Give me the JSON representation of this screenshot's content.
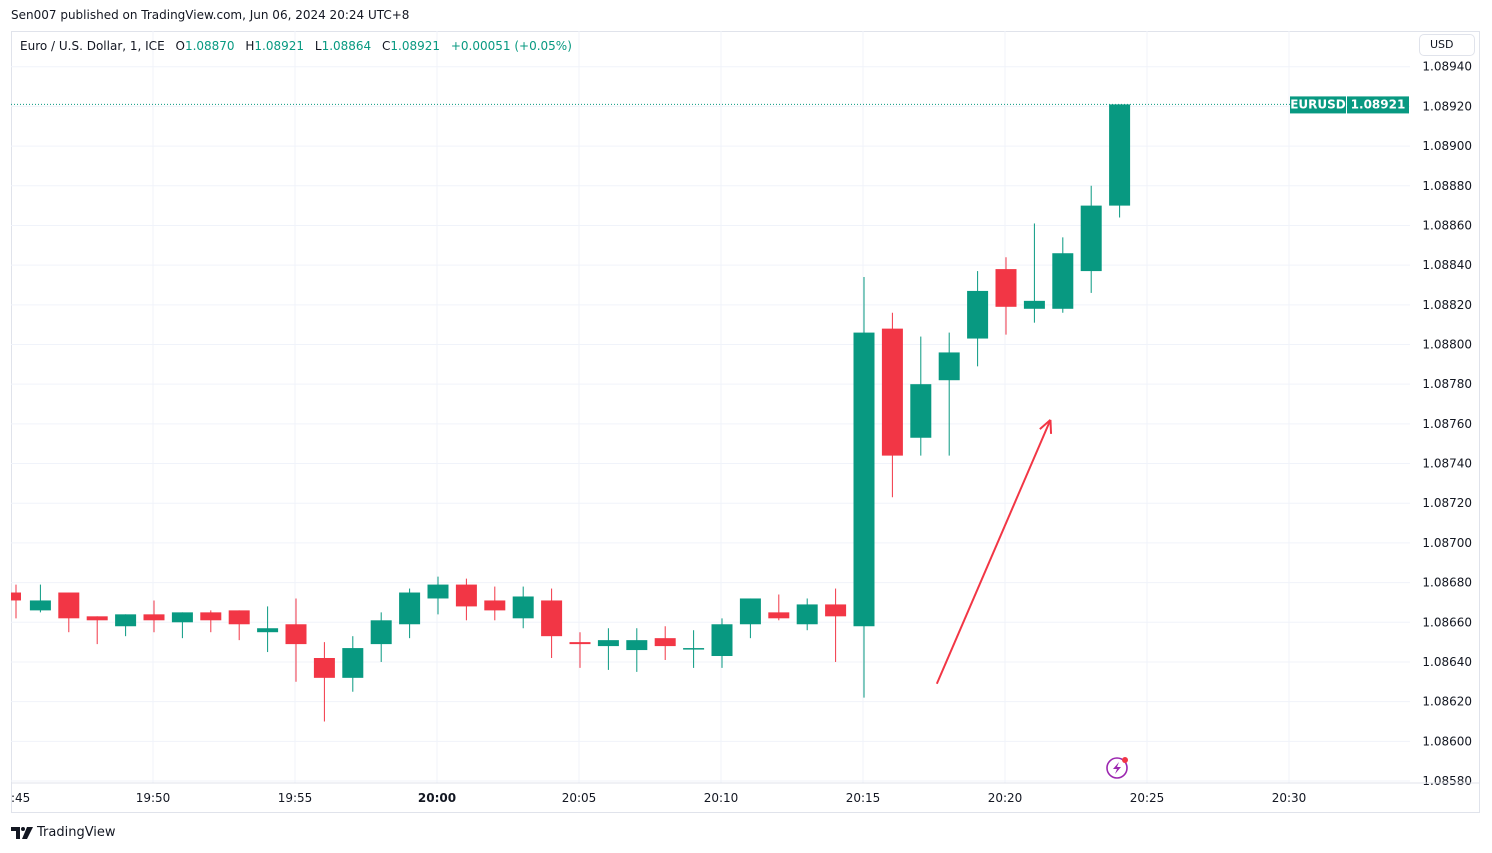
{
  "published": "Sen007 published on TradingView.com, Jun 06, 2024 20:24 UTC+8",
  "legend": {
    "symbol": "Euro / U.S. Dollar, 1, ICE",
    "o_label": "O",
    "o": "1.08870",
    "h_label": "H",
    "h": "1.08921",
    "l_label": "L",
    "l": "1.08864",
    "c_label": "C",
    "c": "1.08921",
    "change": "+0.00051 (+0.05%)"
  },
  "currency_button": "USD",
  "price_tag": {
    "symbol": "EURUSD",
    "price": "1.08921"
  },
  "brand": "TradingView",
  "colors": {
    "up": "#089981",
    "down": "#F23645",
    "grid": "#f0f3fa",
    "arrow": "#F23645",
    "accent": "#9c27b0"
  },
  "chart_data": {
    "type": "candlestick",
    "title": "Euro / U.S. Dollar, 1, ICE",
    "ylim": [
      1.08579,
      1.08958
    ],
    "y_ticks": [
      "1.08940",
      "1.08920",
      "1.08900",
      "1.08880",
      "1.08860",
      "1.08840",
      "1.08820",
      "1.08800",
      "1.08780",
      "1.08760",
      "1.08740",
      "1.08720",
      "1.08700",
      "1.08680",
      "1.08660",
      "1.08640",
      "1.08620",
      "1.08600",
      "1.08580"
    ],
    "x_ticks": [
      ":45",
      "19:50",
      "19:55",
      "20:00",
      "20:05",
      "20:10",
      "20:15",
      "20:20",
      "20:25",
      "20:30"
    ],
    "x_tick_minutes": [
      0,
      5,
      10,
      15,
      20,
      25,
      30,
      35,
      40,
      45
    ],
    "bold_x_tick": "20:00",
    "last_price": 1.08921,
    "candles": [
      {
        "t": "19:45",
        "o": 1.08675,
        "h": 1.08679,
        "l": 1.08662,
        "c": 1.08671
      },
      {
        "t": "19:46",
        "o": 1.08666,
        "h": 1.08679,
        "l": 1.08665,
        "c": 1.08671
      },
      {
        "t": "19:47",
        "o": 1.08675,
        "h": 1.08675,
        "l": 1.08655,
        "c": 1.08662
      },
      {
        "t": "19:48",
        "o": 1.08663,
        "h": 1.08663,
        "l": 1.08649,
        "c": 1.08661
      },
      {
        "t": "19:49",
        "o": 1.08658,
        "h": 1.08664,
        "l": 1.08653,
        "c": 1.08664
      },
      {
        "t": "19:50",
        "o": 1.08664,
        "h": 1.08671,
        "l": 1.08655,
        "c": 1.08661
      },
      {
        "t": "19:51",
        "o": 1.0866,
        "h": 1.08665,
        "l": 1.08652,
        "c": 1.08665
      },
      {
        "t": "19:52",
        "o": 1.08665,
        "h": 1.08666,
        "l": 1.08655,
        "c": 1.08661
      },
      {
        "t": "19:53",
        "o": 1.08666,
        "h": 1.08666,
        "l": 1.08651,
        "c": 1.08659
      },
      {
        "t": "19:54",
        "o": 1.08655,
        "h": 1.08668,
        "l": 1.08645,
        "c": 1.08657
      },
      {
        "t": "19:55",
        "o": 1.08659,
        "h": 1.08672,
        "l": 1.0863,
        "c": 1.08649
      },
      {
        "t": "19:56",
        "o": 1.08642,
        "h": 1.0865,
        "l": 1.0861,
        "c": 1.08632
      },
      {
        "t": "19:57",
        "o": 1.08632,
        "h": 1.08653,
        "l": 1.08625,
        "c": 1.08647
      },
      {
        "t": "19:58",
        "o": 1.08649,
        "h": 1.08665,
        "l": 1.0864,
        "c": 1.08661
      },
      {
        "t": "19:59",
        "o": 1.08659,
        "h": 1.08677,
        "l": 1.08652,
        "c": 1.08675
      },
      {
        "t": "20:00",
        "o": 1.08672,
        "h": 1.08683,
        "l": 1.08664,
        "c": 1.08679
      },
      {
        "t": "20:01",
        "o": 1.08679,
        "h": 1.08682,
        "l": 1.08661,
        "c": 1.08668
      },
      {
        "t": "20:02",
        "o": 1.08671,
        "h": 1.08678,
        "l": 1.08661,
        "c": 1.08666
      },
      {
        "t": "20:03",
        "o": 1.08662,
        "h": 1.08678,
        "l": 1.08657,
        "c": 1.08673
      },
      {
        "t": "20:04",
        "o": 1.08671,
        "h": 1.08677,
        "l": 1.08642,
        "c": 1.08653
      },
      {
        "t": "20:05",
        "o": 1.0865,
        "h": 1.08655,
        "l": 1.08637,
        "c": 1.08649
      },
      {
        "t": "20:06",
        "o": 1.08648,
        "h": 1.08657,
        "l": 1.08636,
        "c": 1.08651
      },
      {
        "t": "20:07",
        "o": 1.08646,
        "h": 1.08657,
        "l": 1.08635,
        "c": 1.08651
      },
      {
        "t": "20:08",
        "o": 1.08652,
        "h": 1.08658,
        "l": 1.08641,
        "c": 1.08648
      },
      {
        "t": "20:09",
        "o": 1.08647,
        "h": 1.08656,
        "l": 1.08637,
        "c": 1.08647
      },
      {
        "t": "20:10",
        "o": 1.08643,
        "h": 1.08662,
        "l": 1.08637,
        "c": 1.08659
      },
      {
        "t": "20:11",
        "o": 1.08659,
        "h": 1.08672,
        "l": 1.08652,
        "c": 1.08672
      },
      {
        "t": "20:12",
        "o": 1.08665,
        "h": 1.08674,
        "l": 1.08661,
        "c": 1.08662
      },
      {
        "t": "20:13",
        "o": 1.08659,
        "h": 1.08672,
        "l": 1.08656,
        "c": 1.08669
      },
      {
        "t": "20:14",
        "o": 1.08669,
        "h": 1.08677,
        "l": 1.0864,
        "c": 1.08663
      },
      {
        "t": "20:15",
        "o": 1.08658,
        "h": 1.08834,
        "l": 1.08622,
        "c": 1.08806
      },
      {
        "t": "20:16",
        "o": 1.08808,
        "h": 1.08816,
        "l": 1.08723,
        "c": 1.08744
      },
      {
        "t": "20:17",
        "o": 1.08753,
        "h": 1.08804,
        "l": 1.08744,
        "c": 1.0878
      },
      {
        "t": "20:18",
        "o": 1.08782,
        "h": 1.08806,
        "l": 1.08744,
        "c": 1.08796
      },
      {
        "t": "20:19",
        "o": 1.08803,
        "h": 1.08837,
        "l": 1.08789,
        "c": 1.08827
      },
      {
        "t": "20:20",
        "o": 1.08838,
        "h": 1.08844,
        "l": 1.08805,
        "c": 1.08819
      },
      {
        "t": "20:21",
        "o": 1.08818,
        "h": 1.08861,
        "l": 1.08811,
        "c": 1.08822
      },
      {
        "t": "20:22",
        "o": 1.08818,
        "h": 1.08854,
        "l": 1.08816,
        "c": 1.08846
      },
      {
        "t": "20:23",
        "o": 1.08837,
        "h": 1.0888,
        "l": 1.08826,
        "c": 1.0887
      },
      {
        "t": "20:24",
        "o": 1.0887,
        "h": 1.08921,
        "l": 1.08864,
        "c": 1.08921
      }
    ],
    "annotation": {
      "type": "arrow",
      "from": {
        "minute": 32.6,
        "price": 1.08629
      },
      "to": {
        "minute": 36.6,
        "price": 1.08762
      }
    }
  }
}
